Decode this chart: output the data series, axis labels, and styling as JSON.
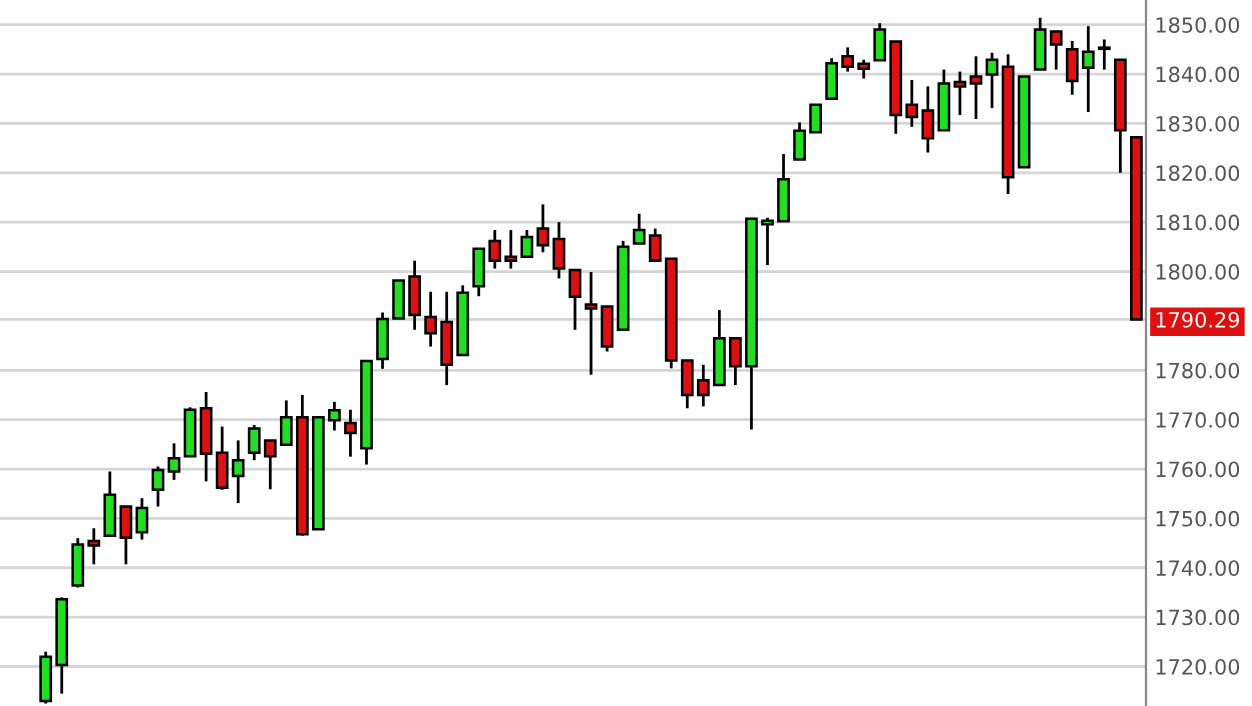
{
  "chart_data": {
    "type": "candlestick",
    "categories": [
      null,
      null,
      null,
      null,
      null,
      null,
      null,
      null,
      null,
      null,
      null,
      null,
      null,
      null,
      null,
      null,
      null,
      null,
      null,
      null,
      null,
      null,
      null,
      null,
      null,
      null,
      null,
      null,
      null,
      null,
      null,
      null,
      null,
      null,
      null,
      null,
      null,
      null,
      null,
      null,
      null,
      null,
      null,
      null,
      null,
      null,
      null,
      null,
      null,
      null,
      null,
      null,
      null,
      null,
      null,
      null,
      null,
      null,
      null,
      null,
      null,
      null,
      null,
      null,
      null,
      null,
      null,
      null,
      null
    ],
    "ohlc": [
      [
        1713,
        1723,
        1712.5,
        1722
      ],
      [
        1720.3,
        1734,
        1714.5,
        1733.6
      ],
      [
        1736.4,
        1746,
        1736,
        1744.7
      ],
      [
        1745.4,
        1748,
        1740.7,
        1744.5
      ],
      [
        1746.5,
        1759.5,
        1746.5,
        1754.8
      ],
      [
        1752.4,
        1752.4,
        1740.7,
        1746.1
      ],
      [
        1747.2,
        1754.1,
        1745.7,
        1752.1
      ],
      [
        1755.8,
        1760.5,
        1752.4,
        1759.8
      ],
      [
        1759.5,
        1765.2,
        1757.8,
        1762.2
      ],
      [
        1762.6,
        1772.5,
        1762.6,
        1772
      ],
      [
        1772.3,
        1775.6,
        1757.5,
        1763.1
      ],
      [
        1763.3,
        1768.6,
        1755.8,
        1756.2
      ],
      [
        1758.6,
        1765.8,
        1753.1,
        1761.8
      ],
      [
        1763.3,
        1768.9,
        1761.8,
        1768.2
      ],
      [
        1765.8,
        1765.8,
        1755.9,
        1762.6
      ],
      [
        1764.9,
        1773.9,
        1764.9,
        1770.5
      ],
      [
        1770.5,
        1775,
        1746.5,
        1746.8
      ],
      [
        1747.8,
        1770.5,
        1747.8,
        1770.5
      ],
      [
        1769.9,
        1773.6,
        1767.8,
        1771.9
      ],
      [
        1769.3,
        1772,
        1762.5,
        1767.3
      ],
      [
        1764.2,
        1781.9,
        1760.9,
        1781.9
      ],
      [
        1782.3,
        1791.7,
        1780.3,
        1790.4
      ],
      [
        1790.5,
        1798.2,
        1790.5,
        1798.2
      ],
      [
        1799,
        1802.2,
        1788.2,
        1791.2
      ],
      [
        1790.8,
        1795.9,
        1784.8,
        1787.5
      ],
      [
        1789.8,
        1795.9,
        1777,
        1781.1
      ],
      [
        1783.1,
        1797.2,
        1783.1,
        1795.7
      ],
      [
        1797,
        1804.6,
        1795,
        1804.6
      ],
      [
        1806.2,
        1808.4,
        1800.6,
        1802.2
      ],
      [
        1803,
        1808.4,
        1800.6,
        1802.2
      ],
      [
        1803,
        1808.4,
        1803,
        1807
      ],
      [
        1808.7,
        1813.6,
        1803.9,
        1805.3
      ],
      [
        1806.6,
        1810,
        1798.6,
        1800.6
      ],
      [
        1800.3,
        1800.3,
        1788.2,
        1794.9
      ],
      [
        1793.3,
        1799.9,
        1779.1,
        1792.5
      ],
      [
        1792.9,
        1792.9,
        1783.8,
        1784.8
      ],
      [
        1788.2,
        1806.2,
        1788.2,
        1805
      ],
      [
        1805.7,
        1811.7,
        1805.7,
        1808.4
      ],
      [
        1807.3,
        1808.7,
        1802.2,
        1802.2
      ],
      [
        1802.6,
        1802.6,
        1780.4,
        1782
      ],
      [
        1782,
        1782,
        1772.3,
        1775
      ],
      [
        1778,
        1781.1,
        1772.7,
        1775
      ],
      [
        1777,
        1792.2,
        1777,
        1786.5
      ],
      [
        1786.5,
        1786.5,
        1777,
        1780.8
      ],
      [
        1780.8,
        1810.9,
        1768,
        1810.7
      ],
      [
        1809.6,
        1810.9,
        1801.3,
        1810.3
      ],
      [
        1810.2,
        1823.8,
        1810.2,
        1818.7
      ],
      [
        1822.7,
        1830.2,
        1822.7,
        1828.5
      ],
      [
        1828.2,
        1833.8,
        1828.2,
        1833.8
      ],
      [
        1835,
        1843.2,
        1835,
        1842.2
      ],
      [
        1843.6,
        1845.4,
        1840.5,
        1841.5
      ],
      [
        1842.1,
        1842.9,
        1839.1,
        1841.1
      ],
      [
        1842.8,
        1850.3,
        1842.8,
        1849
      ],
      [
        1846.6,
        1846.6,
        1827.9,
        1831.7
      ],
      [
        1833.8,
        1838.8,
        1829.3,
        1831.3
      ],
      [
        1832.6,
        1837.5,
        1824.1,
        1827
      ],
      [
        1828.6,
        1840.9,
        1828.6,
        1838.1
      ],
      [
        1838.4,
        1840.5,
        1831.7,
        1837.5
      ],
      [
        1839.5,
        1843.6,
        1830.9,
        1838.1
      ],
      [
        1839.9,
        1844.3,
        1833.1,
        1842.9
      ],
      [
        1841.5,
        1844,
        1815.7,
        1819.1
      ],
      [
        1821.1,
        1839.5,
        1821.1,
        1839.5
      ],
      [
        1840.9,
        1851.4,
        1840.9,
        1849
      ],
      [
        1848.6,
        1848.6,
        1840.9,
        1846
      ],
      [
        1845,
        1846.7,
        1835.8,
        1838.6
      ],
      [
        1841.3,
        1849.7,
        1832.3,
        1844.5
      ],
      [
        1845.1,
        1847,
        1840.9,
        1845.1
      ],
      [
        1842.9,
        1842.9,
        1820,
        1828.6
      ],
      [
        1827.2,
        1827.2,
        1790.29,
        1790.29
      ]
    ],
    "colors": [
      "#22dd22",
      "#22dd22",
      "#22dd22",
      "#dd1111",
      "#22dd22",
      "#dd1111",
      "#22dd22",
      "#22dd22",
      "#22dd22",
      "#22dd22",
      "#dd1111",
      "#dd1111",
      "#22dd22",
      "#22dd22",
      "#dd1111",
      "#22dd22",
      "#dd1111",
      "#22dd22",
      "#22dd22",
      "#dd1111",
      "#22dd22",
      "#22dd22",
      "#22dd22",
      "#dd1111",
      "#dd1111",
      "#dd1111",
      "#22dd22",
      "#22dd22",
      "#dd1111",
      "#dd1111",
      "#22dd22",
      "#dd1111",
      "#dd1111",
      "#dd1111",
      "#dd1111",
      "#dd1111",
      "#22dd22",
      "#22dd22",
      "#dd1111",
      "#dd1111",
      "#dd1111",
      "#dd1111",
      "#22dd22",
      "#dd1111",
      "#22dd22",
      "#22dd22",
      "#22dd22",
      "#22dd22",
      "#22dd22",
      "#22dd22",
      "#dd1111",
      "#dd1111",
      "#22dd22",
      "#dd1111",
      "#dd1111",
      "#dd1111",
      "#22dd22",
      "#dd1111",
      "#dd1111",
      "#22dd22",
      "#dd1111",
      "#22dd22",
      "#22dd22",
      "#dd1111",
      "#dd1111",
      "#22dd22",
      "#22dd22",
      "#dd1111",
      "#dd1111"
    ],
    "ylim": [
      1712,
      1855
    ],
    "yticks": [
      {
        "value": 1720,
        "label": "1720.00"
      },
      {
        "value": 1730,
        "label": "1730.00"
      },
      {
        "value": 1740,
        "label": "1740.00"
      },
      {
        "value": 1750,
        "label": "1750.00"
      },
      {
        "value": 1760,
        "label": "1760.00"
      },
      {
        "value": 1770,
        "label": "1770.00"
      },
      {
        "value": 1780,
        "label": "1780.00"
      },
      1790.29,
      {
        "value": 1800,
        "label": "1800.00"
      },
      {
        "value": 1810,
        "label": "1810.00"
      },
      {
        "value": 1820,
        "label": "1820.00"
      },
      {
        "value": 1830,
        "label": "1830.00"
      },
      {
        "value": 1840,
        "label": "1840.00"
      },
      {
        "value": 1850,
        "label": "1850.00"
      }
    ],
    "tick_labels": "y",
    "grid": "y"
  }
}
